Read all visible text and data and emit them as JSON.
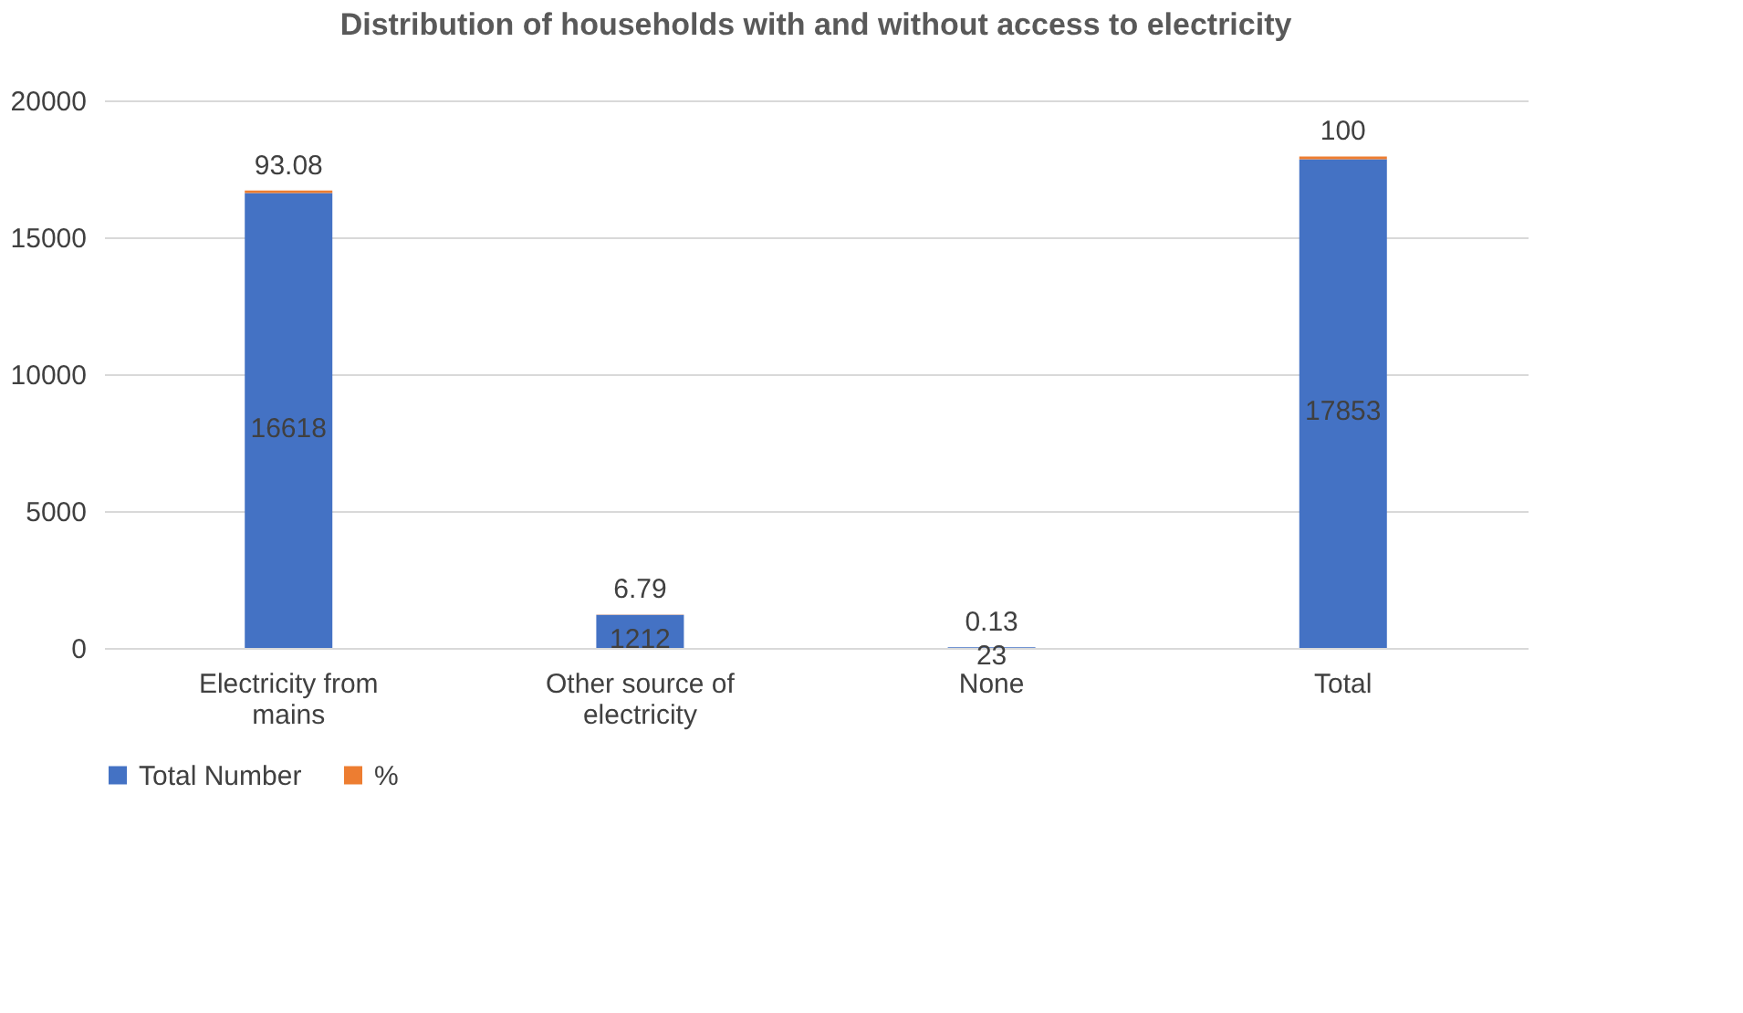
{
  "chart_data": {
    "type": "bar",
    "title": "Distribution of households with and without access to electricity",
    "categories": [
      "Electricity from mains",
      "Other source of electricity",
      "None",
      "Total"
    ],
    "series": [
      {
        "name": "Total Number",
        "color": "#4472c4",
        "values": [
          16618,
          1212,
          23,
          17853
        ]
      },
      {
        "name": "%",
        "color": "#ed7d31",
        "values": [
          93.08,
          6.79,
          0.13,
          100
        ]
      }
    ],
    "stacked": true,
    "ylim": [
      0,
      20000
    ],
    "yticks": [
      0,
      5000,
      10000,
      15000,
      20000
    ],
    "grid": "y",
    "legend": "bottom",
    "data_labels": true
  }
}
